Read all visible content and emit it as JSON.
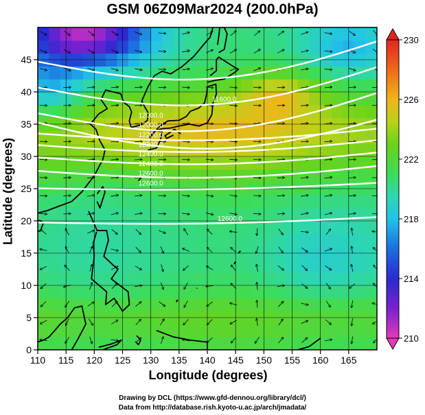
{
  "title": "GSM 06Z09Mar2024 (200.0hPa)",
  "credits": [
    "Drawing by DCL (https://www.gfd-dennou.org/library/dcl/)",
    "Data from http://database.rish.kyoto-u.ac.jp/arch/jmadata/"
  ],
  "colors": {
    "coast": "#000000",
    "contour": "#ffffff",
    "grid": "#000000",
    "streamline": "#000000"
  },
  "icons": {
    "colorbar_top": "triangle-up-icon",
    "colorbar_bottom": "triangle-down-icon"
  },
  "chart_data": {
    "type": "heatmap",
    "xlabel": "Longitude (degrees)",
    "ylabel": "Latitude  (degrees)",
    "xlim": [
      110,
      170
    ],
    "ylim": [
      0,
      50
    ],
    "xticks": [
      110,
      115,
      120,
      125,
      130,
      135,
      140,
      145,
      150,
      155,
      160,
      165
    ],
    "yticks": [
      0,
      5,
      10,
      15,
      20,
      25,
      30,
      35,
      40,
      45
    ],
    "colorbar": {
      "ticks": [
        210,
        214,
        218,
        222,
        226,
        230
      ],
      "range": [
        210,
        230
      ],
      "stops": [
        {
          "value": 210,
          "color": "#e23ab8"
        },
        {
          "value": 212,
          "color": "#7a20d0"
        },
        {
          "value": 214,
          "color": "#2a2ad0"
        },
        {
          "value": 216,
          "color": "#1c6ee0"
        },
        {
          "value": 218,
          "color": "#22c3ea"
        },
        {
          "value": 219.5,
          "color": "#2dd6b2"
        },
        {
          "value": 221,
          "color": "#3ddc58"
        },
        {
          "value": 223,
          "color": "#6ad31a"
        },
        {
          "value": 224.5,
          "color": "#b8d21a"
        },
        {
          "value": 226,
          "color": "#f0b51a"
        },
        {
          "value": 228,
          "color": "#ee6a1a"
        },
        {
          "value": 230,
          "color": "#e0251f"
        }
      ]
    },
    "temperature_field": {
      "description_of_features": "cold low in NW corner, warm jet band 30-42N, warm max near 153E 40N",
      "features": [
        {
          "kind": "cold-core",
          "lon": 118,
          "lat": 49,
          "value": 212
        },
        {
          "kind": "warm-core",
          "lon": 153,
          "lat": 40,
          "value": 228
        }
      ]
    },
    "contour_labels": [
      {
        "text": "11600.0",
        "lon": 143,
        "lat": 38.5
      },
      {
        "text": "12000.0",
        "lon": 130,
        "lat": 36
      },
      {
        "text": "12000.0",
        "lon": 130,
        "lat": 34.5
      },
      {
        "text": "12200.0",
        "lon": 130,
        "lat": 33
      },
      {
        "text": "12200.0",
        "lon": 130,
        "lat": 31.5
      },
      {
        "text": "12400.0",
        "lon": 130,
        "lat": 30
      },
      {
        "text": "12400.0",
        "lon": 130,
        "lat": 28.5
      },
      {
        "text": "12600.0",
        "lon": 130,
        "lat": 27
      },
      {
        "text": "12600.0",
        "lon": 130,
        "lat": 25.5
      },
      {
        "text": "12600.0",
        "lon": 144,
        "lat": 20
      }
    ]
  }
}
